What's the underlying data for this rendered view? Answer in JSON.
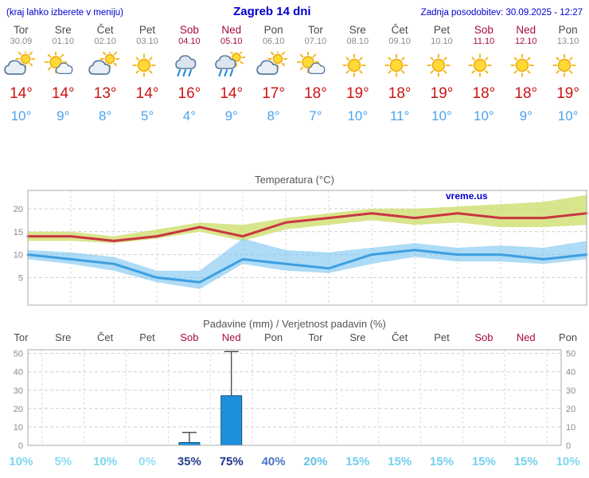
{
  "header": {
    "left_note": "(kraj lahko izberete v meniju)",
    "title": "Zagreb 14 dni",
    "updated": "Zadnja posodobitev: 30.09.2025 - 12:27"
  },
  "watermark": "vreme.us",
  "colors": {
    "link_blue": "#0000cc",
    "weekday_gray": "#4a4a4a",
    "weekend_red": "#a80a3c",
    "temp_high": "#cc1414",
    "temp_low": "#4aa3ef",
    "chart_title_gray": "#555555"
  },
  "forecast": {
    "days": [
      {
        "name": "Tor",
        "date": "30.09",
        "weekend": false,
        "icon": "cloud-sun",
        "high": "14°",
        "low": "10°"
      },
      {
        "name": "Sre",
        "date": "01.10",
        "weekend": false,
        "icon": "sun-cloud",
        "high": "14°",
        "low": "9°"
      },
      {
        "name": "Čet",
        "date": "02.10",
        "weekend": false,
        "icon": "cloud-sun",
        "high": "13°",
        "low": "8°"
      },
      {
        "name": "Pet",
        "date": "03.10",
        "weekend": false,
        "icon": "sun",
        "high": "14°",
        "low": "5°"
      },
      {
        "name": "Sob",
        "date": "04.10",
        "weekend": true,
        "icon": "rain-cloud",
        "high": "16°",
        "low": "4°"
      },
      {
        "name": "Ned",
        "date": "05.10",
        "weekend": true,
        "icon": "rain-sun-cloud",
        "high": "14°",
        "low": "9°"
      },
      {
        "name": "Pon",
        "date": "06.10",
        "weekend": false,
        "icon": "cloud-sun",
        "high": "17°",
        "low": "8°"
      },
      {
        "name": "Tor",
        "date": "07.10",
        "weekend": false,
        "icon": "sun-cloud",
        "high": "18°",
        "low": "7°"
      },
      {
        "name": "Sre",
        "date": "08.10",
        "weekend": false,
        "icon": "sun",
        "high": "19°",
        "low": "10°"
      },
      {
        "name": "Čet",
        "date": "09.10",
        "weekend": false,
        "icon": "sun",
        "high": "18°",
        "low": "11°"
      },
      {
        "name": "Pet",
        "date": "10.10",
        "weekend": false,
        "icon": "sun",
        "high": "19°",
        "low": "10°"
      },
      {
        "name": "Sob",
        "date": "11.10",
        "weekend": true,
        "icon": "sun",
        "high": "18°",
        "low": "10°"
      },
      {
        "name": "Ned",
        "date": "12.10",
        "weekend": true,
        "icon": "sun",
        "high": "18°",
        "low": "9°"
      },
      {
        "name": "Pon",
        "date": "13.10",
        "weekend": false,
        "icon": "sun",
        "high": "19°",
        "low": "10°"
      }
    ]
  },
  "chart_data": [
    {
      "type": "line",
      "title": "Temperatura (°C)",
      "categories": [
        "Tor",
        "Sre",
        "Čet",
        "Pet",
        "Sob",
        "Ned",
        "Pon",
        "Tor",
        "Sre",
        "Čet",
        "Pet",
        "Sob",
        "Ned",
        "Pon"
      ],
      "ylim": [
        -1,
        24
      ],
      "yticks": [
        5,
        10,
        15,
        20
      ],
      "grid": true,
      "series": [
        {
          "name": "max-temp",
          "color": "#c93642",
          "line_width": 3,
          "values": [
            14,
            14,
            13,
            14,
            16,
            14,
            17,
            18,
            19,
            18,
            19,
            18,
            18,
            19
          ],
          "band_upper": [
            15,
            15,
            14,
            15.5,
            17,
            16.5,
            18,
            19,
            20,
            20,
            20.5,
            21,
            21.5,
            23
          ],
          "band_lower": [
            13,
            13,
            12.5,
            13.5,
            15,
            13,
            15.5,
            16.5,
            17.5,
            16.5,
            17,
            16,
            16,
            16.5
          ],
          "band_color": "rgba(210,225,120,0.85)"
        },
        {
          "name": "min-temp",
          "color": "#3d9fe0",
          "line_width": 3,
          "values": [
            10,
            9,
            8,
            5,
            4,
            9,
            8,
            7,
            10,
            11,
            10,
            10,
            9,
            10
          ],
          "band_upper": [
            11,
            10.5,
            9.5,
            6.5,
            6.5,
            13.5,
            11,
            10.5,
            11.5,
            12.5,
            11.5,
            12,
            11.5,
            13
          ],
          "band_lower": [
            9,
            8,
            6.5,
            4,
            2.5,
            8,
            6.5,
            6,
            8,
            9.5,
            8.5,
            8.5,
            8,
            9
          ],
          "band_color": "rgba(120,195,240,0.6)"
        }
      ]
    },
    {
      "type": "bar",
      "title": "Padavine (mm) / Verjetnost padavin (%)",
      "categories": [
        "Tor",
        "Sre",
        "Čet",
        "Pet",
        "Sob",
        "Ned",
        "Pon",
        "Tor",
        "Sre",
        "Čet",
        "Pet",
        "Sob",
        "Ned",
        "Pon"
      ],
      "ylim": [
        0,
        52
      ],
      "yticks": [
        0,
        10,
        20,
        30,
        40,
        50
      ],
      "values": [
        0,
        0,
        0,
        0,
        1.5,
        27,
        0,
        0,
        0,
        0,
        0,
        0,
        0,
        0
      ],
      "whisker_high": [
        0,
        0,
        0,
        0,
        7,
        51,
        0,
        0,
        0,
        0,
        0,
        0,
        0,
        0
      ],
      "bar_color": "#1e8fdc",
      "bar_border": "#10567e",
      "probabilities": [
        "10%",
        "5%",
        "10%",
        "0%",
        "35%",
        "75%",
        "40%",
        "20%",
        "15%",
        "15%",
        "15%",
        "15%",
        "15%",
        "10%"
      ],
      "prob_colors": [
        "#7bd6f0",
        "#8adcf3",
        "#7bd6f0",
        "#93e0f5",
        "#27418f",
        "#1d3490",
        "#4a74c8",
        "#62c2e6",
        "#73cfec",
        "#73cfec",
        "#73cfec",
        "#73cfec",
        "#73cfec",
        "#7bd6f0"
      ]
    }
  ]
}
